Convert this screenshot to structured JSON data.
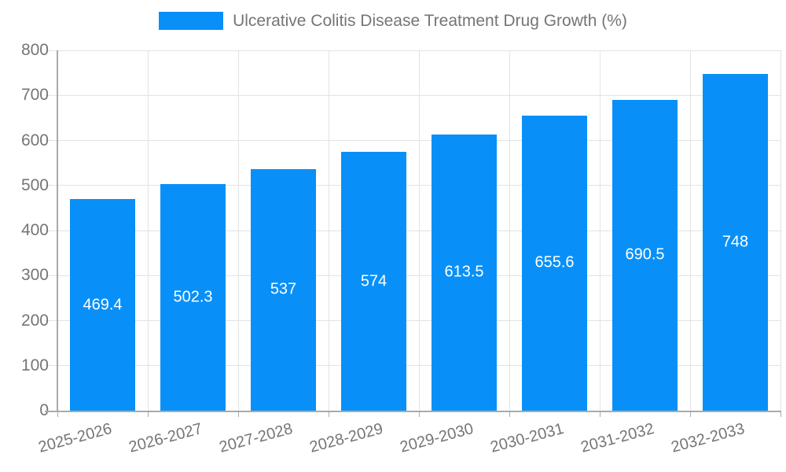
{
  "chart_data": {
    "type": "bar",
    "title": "",
    "legend": "Ulcerative Colitis Disease Treatment Drug Growth (%)",
    "legend_position": "top",
    "categories": [
      "2025-2026",
      "2026-2027",
      "2027-2028",
      "2028-2029",
      "2029-2030",
      "2030-2031",
      "2031-2032",
      "2032-2033"
    ],
    "values": [
      469.4,
      502.3,
      537,
      574,
      613.5,
      655.6,
      690.5,
      748
    ],
    "value_labels": [
      "469.4",
      "502.3",
      "537",
      "574",
      "613.5",
      "655.6",
      "690.5",
      "748"
    ],
    "xlabel": "",
    "ylabel": "",
    "ylim": [
      0,
      800
    ],
    "yticks": [
      0,
      100,
      200,
      300,
      400,
      500,
      600,
      700,
      800
    ],
    "grid": true,
    "colors": {
      "bar": "#0890f8",
      "value_label": "#ffffff",
      "axis": "#aaaaaa",
      "grid": "#e3e3e3",
      "text": "#757575",
      "background": "#ffffff"
    }
  }
}
